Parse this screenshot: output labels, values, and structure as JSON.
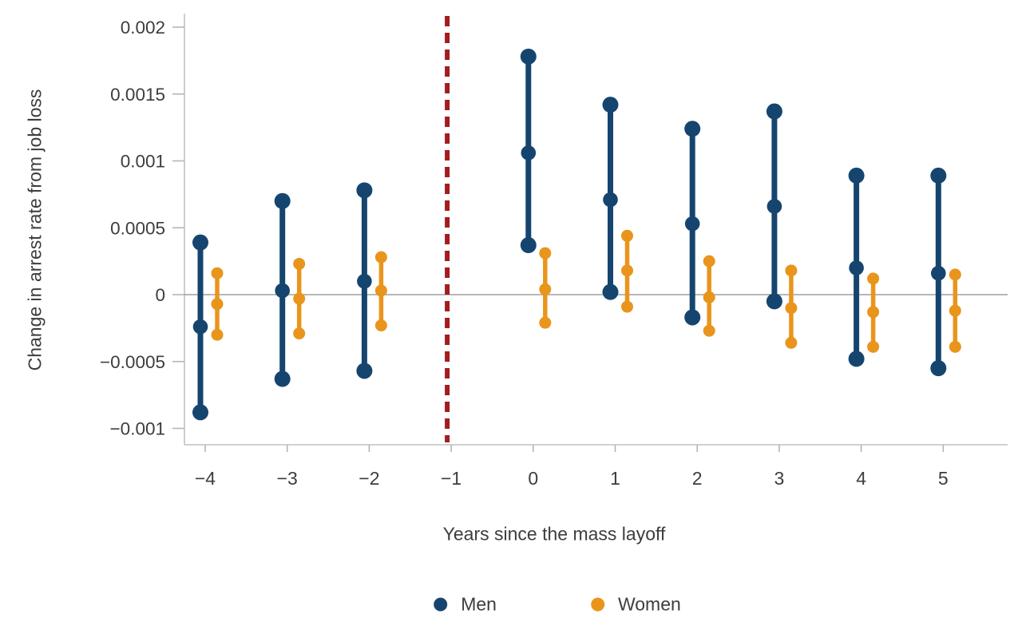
{
  "figure": {
    "background": "#ffffff"
  },
  "chart_data": {
    "type": "scatter",
    "subtype": "point-estimates-with-confidence-intervals",
    "title": "",
    "xlabel": "Years since the mass layoff",
    "ylabel": "Change in arrest rate from job loss",
    "x": [
      -4,
      -3,
      -2,
      -1,
      0,
      1,
      2,
      3,
      4,
      5
    ],
    "x_tick_labels": [
      "−4",
      "−3",
      "−2",
      "−1",
      "0",
      "1",
      "2",
      "3",
      "4",
      "5"
    ],
    "y_ticks": [
      {
        "value": 0.002,
        "label": "0.002"
      },
      {
        "value": 0.0015,
        "label": "0.0015"
      },
      {
        "value": 0.001,
        "label": "0.001"
      },
      {
        "value": 0.0005,
        "label": "0.0005"
      },
      {
        "value": 0,
        "label": "0"
      },
      {
        "value": -0.0005,
        "label": "−0.0005"
      },
      {
        "value": -0.001,
        "label": "−0.001"
      }
    ],
    "ylim": [
      -0.00112,
      0.0021
    ],
    "grid": "zero-line-only",
    "legend_position": "bottom",
    "zero_line_color": "#8c8c8c",
    "axis_color": "#c2c2c2",
    "tick_color": "#b5b5b5",
    "text_color": "#3d3d3d",
    "reference_line": {
      "x": -1,
      "style": "dashed",
      "color": "#a21c21"
    },
    "series": [
      {
        "name": "Men",
        "color": "#15456f",
        "points": [
          {
            "x": -4,
            "low": -0.00088,
            "mid": -0.00024,
            "high": 0.00039
          },
          {
            "x": -3,
            "low": -0.00063,
            "mid": 3e-05,
            "high": 0.0007
          },
          {
            "x": -2,
            "low": -0.00057,
            "mid": 0.0001,
            "high": 0.00078
          },
          {
            "x": 0,
            "low": 0.00037,
            "mid": 0.00106,
            "high": 0.00178
          },
          {
            "x": 1,
            "low": 2e-05,
            "mid": 0.00071,
            "high": 0.00142
          },
          {
            "x": 2,
            "low": -0.00017,
            "mid": 0.00053,
            "high": 0.00124
          },
          {
            "x": 3,
            "low": -5e-05,
            "mid": 0.00066,
            "high": 0.00137
          },
          {
            "x": 4,
            "low": -0.00048,
            "mid": 0.0002,
            "high": 0.00089
          },
          {
            "x": 5,
            "low": -0.00055,
            "mid": 0.00016,
            "high": 0.00089
          }
        ]
      },
      {
        "name": "Women",
        "color": "#e9951c",
        "points": [
          {
            "x": -4,
            "low": -0.0003,
            "mid": -7e-05,
            "high": 0.00016
          },
          {
            "x": -3,
            "low": -0.00029,
            "mid": -3e-05,
            "high": 0.00023
          },
          {
            "x": -2,
            "low": -0.00023,
            "mid": 3e-05,
            "high": 0.00028
          },
          {
            "x": 0,
            "low": -0.00021,
            "mid": 4e-05,
            "high": 0.00031
          },
          {
            "x": 1,
            "low": -9e-05,
            "mid": 0.00018,
            "high": 0.00044
          },
          {
            "x": 2,
            "low": -0.00027,
            "mid": -2e-05,
            "high": 0.00025
          },
          {
            "x": 3,
            "low": -0.00036,
            "mid": -0.0001,
            "high": 0.00018
          },
          {
            "x": 4,
            "low": -0.00039,
            "mid": -0.00013,
            "high": 0.00012
          },
          {
            "x": 5,
            "low": -0.00039,
            "mid": -0.00012,
            "high": 0.00015
          }
        ]
      }
    ]
  }
}
